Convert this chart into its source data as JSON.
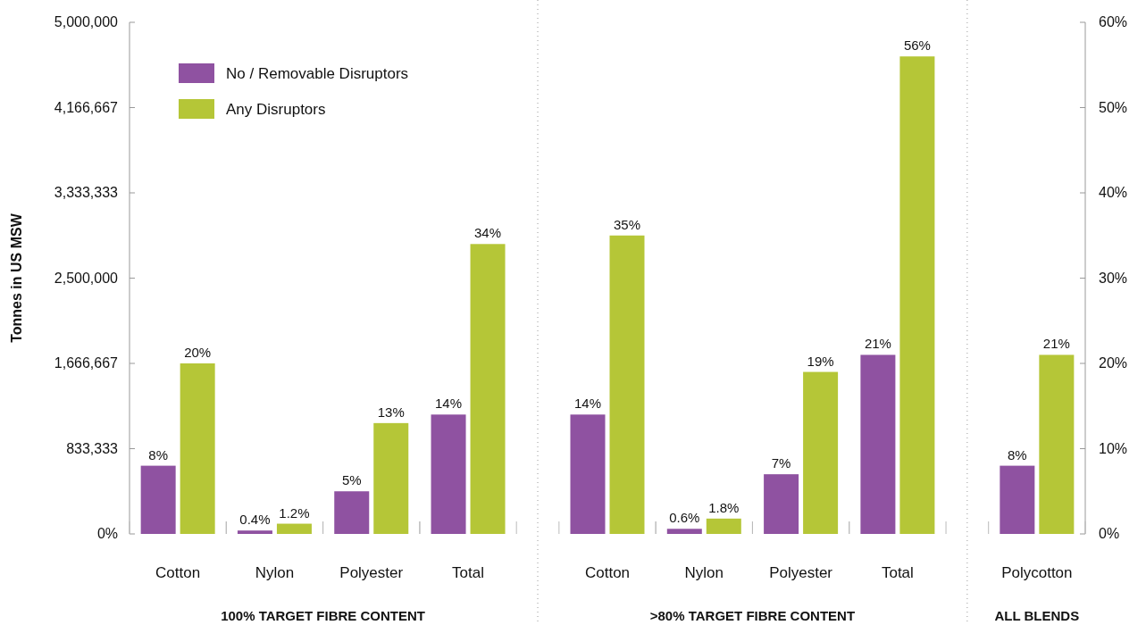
{
  "chart_data": {
    "type": "bar",
    "ylabel": "Tonnes in US MSW",
    "categories": [
      "Cotton",
      "Nylon",
      "Polyester",
      "Total",
      "Cotton",
      "Nylon",
      "Polyester",
      "Total",
      "Polycotton"
    ],
    "series": [
      {
        "name": "No / Removable Disruptors",
        "color": "#8f52a1",
        "axis": "y2",
        "values": [
          8,
          0.4,
          5,
          14,
          14,
          0.6,
          7,
          21,
          8
        ],
        "value_labels": [
          "8%",
          "0.4%",
          "5%",
          "14%",
          "14%",
          "0.6%",
          "7%",
          "21%",
          "8%"
        ]
      },
      {
        "name": "Any Disruptors",
        "color": "#b5c637",
        "axis": "y2",
        "values": [
          20,
          1.2,
          13,
          34,
          35,
          1.8,
          19,
          56,
          21
        ],
        "value_labels": [
          "20%",
          "1.2%",
          "13%",
          "34%",
          "35%",
          "1.8%",
          "19%",
          "56%",
          "21%"
        ]
      }
    ],
    "ylim": [
      0,
      5000000
    ],
    "yticks": [
      {
        "value": 0,
        "label": "0%"
      },
      {
        "value": 833333.33,
        "label": "833,333"
      },
      {
        "value": 1666666.67,
        "label": "1,666,667"
      },
      {
        "value": 2500000,
        "label": "2,500,000"
      },
      {
        "value": 3333333.33,
        "label": "3,333,333"
      },
      {
        "value": 4166666.67,
        "label": "4,166,667"
      },
      {
        "value": 5000000,
        "label": "5,000,000"
      }
    ],
    "y2lim": [
      0,
      60
    ],
    "y2ticks": [
      {
        "value": 0,
        "label": "0%"
      },
      {
        "value": 10,
        "label": "10%"
      },
      {
        "value": 20,
        "label": "20%"
      },
      {
        "value": 30,
        "label": "30%"
      },
      {
        "value": 40,
        "label": "40%"
      },
      {
        "value": 50,
        "label": "50%"
      },
      {
        "value": 60,
        "label": "60%"
      }
    ],
    "legend": "top left",
    "grid": false,
    "annotations": [
      "100% TARGET FIBRE CONTENT",
      ">80% TARGET FIBRE CONTENT",
      "ALL BLENDS"
    ]
  }
}
